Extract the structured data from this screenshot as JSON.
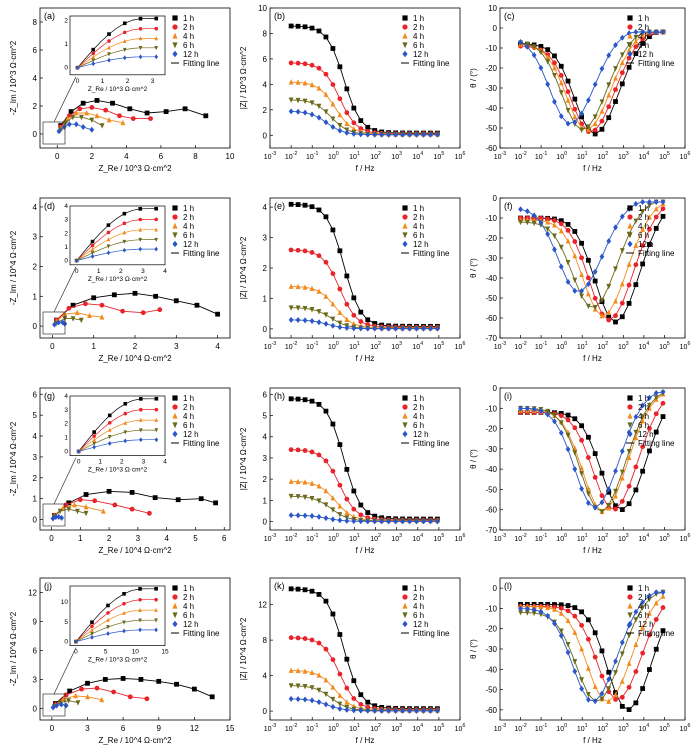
{
  "legend": {
    "times": [
      "1 h",
      "2 h",
      "4 h",
      "6 h",
      "12 h"
    ],
    "fit": "Fitting line"
  },
  "colors": {
    "1 h": "#000000",
    "2 h": "#e8232a",
    "4 h": "#f28a1c",
    "6 h": "#6b6a1a",
    "12 h": "#2a56c8"
  },
  "markers": {
    "1 h": "square",
    "2 h": "circle",
    "4 h": "triangle-up",
    "6 h": "triangle-down",
    "12 h": "diamond"
  },
  "chart_data": [
    {
      "id": "a",
      "letter": "(a)",
      "type": "scatter",
      "xlabel": "Z_Re / 10^3 Ω·cm^2",
      "ylabel": "-Z_Im / 10^3 Ω·cm^2",
      "xlim": [
        -1,
        10
      ],
      "ylim": [
        -1,
        9
      ],
      "xticks": [
        0,
        2,
        4,
        6,
        8,
        10
      ],
      "yticks": [
        0,
        2,
        4,
        6,
        8
      ],
      "series": [
        {
          "name": "1 h",
          "x": [
            0.2,
            0.8,
            1.5,
            2.3,
            3.2,
            4.2,
            5.2,
            6.3,
            7.4,
            8.6
          ],
          "y": [
            0.6,
            1.6,
            2.2,
            2.4,
            2.2,
            1.8,
            1.5,
            1.6,
            1.8,
            1.3
          ]
        },
        {
          "name": "2 h",
          "x": [
            0.2,
            0.7,
            1.3,
            2.0,
            2.8,
            3.6,
            4.4,
            5.4
          ],
          "y": [
            0.5,
            1.3,
            1.8,
            1.9,
            1.7,
            1.3,
            1.1,
            1.1
          ]
        },
        {
          "name": "4 h",
          "x": [
            0.2,
            0.6,
            1.1,
            1.7,
            2.3,
            3.0,
            3.8
          ],
          "y": [
            0.4,
            1.1,
            1.5,
            1.5,
            1.3,
            1.0,
            0.8
          ]
        },
        {
          "name": "6 h",
          "x": [
            0.2,
            0.5,
            0.9,
            1.4,
            2.0,
            2.6
          ],
          "y": [
            0.3,
            0.8,
            1.2,
            1.2,
            1.0,
            0.6
          ]
        },
        {
          "name": "12 h",
          "x": [
            0.1,
            0.4,
            0.7,
            1.1,
            1.5,
            2.0
          ],
          "y": [
            0.2,
            0.5,
            0.7,
            0.7,
            0.5,
            0.3
          ]
        }
      ],
      "inset": {
        "xlabel": "Z_Re / 10^3 Ω·cm^2",
        "ylabel": "-Z_Im / 10^3 Ω·cm^2",
        "xlim": [
          -0.3,
          3.5
        ],
        "ylim": [
          -0.3,
          2.2
        ],
        "xticks": [
          0,
          1,
          2,
          3
        ],
        "yticks": [
          0,
          1,
          2
        ]
      }
    },
    {
      "id": "b",
      "letter": "(b)",
      "type": "line",
      "xlabel": "f / Hz",
      "ylabel": "|Z| / 10^3 Ω·cm^2",
      "log_x": true,
      "xlim": [
        -3,
        6
      ],
      "ylim": [
        -1,
        10
      ],
      "yticks": [
        0,
        2,
        4,
        6,
        8,
        10
      ],
      "low": [
        8.6,
        5.7,
        4.2,
        2.8,
        1.9
      ]
    },
    {
      "id": "c",
      "letter": "(c)",
      "type": "line",
      "xlabel": "f / Hz",
      "ylabel": "θ / (°)",
      "log_x": true,
      "xlim": [
        -3,
        6
      ],
      "ylim": [
        -60,
        10
      ],
      "yticks": [
        -60,
        -50,
        -40,
        -30,
        -20,
        -10,
        0,
        10
      ],
      "peaks": [
        [
          1.6,
          -53
        ],
        [
          1.4,
          -52
        ],
        [
          1.2,
          -51
        ],
        [
          1.0,
          -51
        ],
        [
          0.4,
          -48
        ]
      ],
      "low": [
        -8,
        -9,
        -8,
        -7,
        -5
      ]
    },
    {
      "id": "d",
      "letter": "(d)",
      "type": "scatter",
      "xlabel": "Z_Re / 10^4 Ω·cm^2",
      "ylabel": "-Z_Im / 10^4 Ω·cm^2",
      "xlim": [
        -0.3,
        4.3
      ],
      "ylim": [
        -0.4,
        4.3
      ],
      "xticks": [
        0,
        1,
        2,
        3,
        4
      ],
      "yticks": [
        0,
        1,
        2,
        3,
        4
      ],
      "series": [
        {
          "name": "1 h",
          "x": [
            0.1,
            0.5,
            1.0,
            1.5,
            2.0,
            2.5,
            3.0,
            3.5,
            4.0
          ],
          "y": [
            0.2,
            0.7,
            0.95,
            1.05,
            1.1,
            1.0,
            0.85,
            0.7,
            0.4
          ]
        },
        {
          "name": "2 h",
          "x": [
            0.1,
            0.4,
            0.8,
            1.2,
            1.7,
            2.2,
            2.6
          ],
          "y": [
            0.2,
            0.6,
            0.75,
            0.7,
            0.5,
            0.45,
            0.55
          ]
        },
        {
          "name": "4 h",
          "x": [
            0.1,
            0.3,
            0.6,
            0.9,
            1.2
          ],
          "y": [
            0.15,
            0.4,
            0.45,
            0.35,
            0.3
          ]
        },
        {
          "name": "6 h",
          "x": [
            0.1,
            0.3,
            0.5,
            0.7
          ],
          "y": [
            0.1,
            0.25,
            0.25,
            0.2
          ]
        },
        {
          "name": "12 h",
          "x": [
            0.05,
            0.15,
            0.25,
            0.3
          ],
          "y": [
            0.05,
            0.12,
            0.12,
            0.08
          ]
        }
      ],
      "inset": {
        "xlabel": "Z_Re / 10^3 Ω·cm^2",
        "ylabel": "-Z_Im / 10^3 Ω·cm^2",
        "xlim": [
          -0.3,
          4
        ],
        "ylim": [
          -0.3,
          4
        ],
        "xticks": [
          0,
          1,
          2,
          3,
          4
        ],
        "yticks": [
          0,
          1,
          2,
          3,
          4
        ]
      }
    },
    {
      "id": "e",
      "letter": "(e)",
      "type": "line",
      "xlabel": "f / Hz",
      "ylabel": "|Z| / 10^4 Ω·cm^2",
      "log_x": true,
      "xlim": [
        -3,
        6
      ],
      "ylim": [
        -0.3,
        4.3
      ],
      "yticks": [
        0,
        1,
        2,
        3,
        4
      ],
      "low": [
        4.1,
        2.6,
        1.4,
        0.7,
        0.3
      ]
    },
    {
      "id": "f",
      "letter": "(f)",
      "type": "line",
      "xlabel": "f / Hz",
      "ylabel": "θ / (°)",
      "log_x": true,
      "xlim": [
        -3,
        6
      ],
      "ylim": [
        -70,
        0
      ],
      "yticks": [
        -70,
        -60,
        -50,
        -40,
        -30,
        -20,
        -10,
        0
      ],
      "peaks": [
        [
          2.6,
          -62
        ],
        [
          2.3,
          -61
        ],
        [
          2.0,
          -59
        ],
        [
          1.5,
          -55
        ],
        [
          0.8,
          -47
        ]
      ],
      "low": [
        -10,
        -10,
        -11,
        -12,
        -5
      ]
    },
    {
      "id": "g",
      "letter": "(g)",
      "type": "scatter",
      "xlabel": "Z_Re / 10^4 Ω·cm^2",
      "ylabel": "-Z_Im / 10^4 Ω·cm^2",
      "xlim": [
        -0.4,
        6.2
      ],
      "ylim": [
        -0.5,
        6.3
      ],
      "xticks": [
        0,
        1,
        2,
        3,
        4,
        5,
        6
      ],
      "yticks": [
        0,
        1,
        2,
        3,
        4,
        5,
        6
      ],
      "series": [
        {
          "name": "1 h",
          "x": [
            0.1,
            0.6,
            1.2,
            2.0,
            2.8,
            3.6,
            4.4,
            5.2,
            5.7
          ],
          "y": [
            0.2,
            0.8,
            1.2,
            1.35,
            1.3,
            1.05,
            0.95,
            1.0,
            0.8
          ]
        },
        {
          "name": "2 h",
          "x": [
            0.1,
            0.5,
            1.0,
            1.5,
            2.2,
            2.8,
            3.4
          ],
          "y": [
            0.2,
            0.7,
            0.95,
            0.9,
            0.7,
            0.5,
            0.3
          ]
        },
        {
          "name": "4 h",
          "x": [
            0.1,
            0.4,
            0.8,
            1.2,
            1.8
          ],
          "y": [
            0.2,
            0.55,
            0.7,
            0.6,
            0.4
          ]
        },
        {
          "name": "6 h",
          "x": [
            0.1,
            0.3,
            0.6,
            0.9,
            1.2
          ],
          "y": [
            0.15,
            0.4,
            0.5,
            0.4,
            0.3
          ]
        },
        {
          "name": "12 h",
          "x": [
            0.05,
            0.15,
            0.25,
            0.35
          ],
          "y": [
            0.05,
            0.12,
            0.13,
            0.08
          ]
        }
      ],
      "inset": {
        "xlabel": "Z_Re / 10^3 Ω·cm^2",
        "ylabel": "-Z_Im / 10^3 Ω·cm^2",
        "xlim": [
          -0.4,
          4
        ],
        "ylim": [
          -0.3,
          4
        ],
        "xticks": [
          0,
          1,
          2,
          3,
          4
        ],
        "yticks": [
          0,
          1,
          2,
          3,
          4
        ]
      }
    },
    {
      "id": "h",
      "letter": "(h)",
      "type": "line",
      "xlabel": "f / Hz",
      "ylabel": "|Z| / 10^4 Ω·cm^2",
      "log_x": true,
      "xlim": [
        -3,
        6
      ],
      "ylim": [
        -0.4,
        6.3
      ],
      "yticks": [
        0,
        1,
        2,
        3,
        4,
        5,
        6
      ],
      "low": [
        5.8,
        3.4,
        1.9,
        1.2,
        0.3
      ]
    },
    {
      "id": "i",
      "letter": "(i)",
      "type": "line",
      "xlabel": "f / Hz",
      "ylabel": "θ / (°)",
      "log_x": true,
      "xlim": [
        -3,
        6
      ],
      "ylim": [
        -70,
        0
      ],
      "yticks": [
        -70,
        -60,
        -50,
        -40,
        -30,
        -20,
        -10,
        0
      ],
      "peaks": [
        [
          2.9,
          -60
        ],
        [
          2.5,
          -60
        ],
        [
          2.0,
          -61
        ],
        [
          1.9,
          -61
        ],
        [
          1.6,
          -59
        ]
      ],
      "low": [
        -12,
        -12,
        -11,
        -10,
        -10
      ]
    },
    {
      "id": "j",
      "letter": "(j)",
      "type": "scatter",
      "xlabel": "Z_Re / 10^4 Ω·cm^2",
      "ylabel": "-Z_Im / 10^4 Ω·cm^2",
      "xlim": [
        -1,
        15
      ],
      "ylim": [
        -1.2,
        13.5
      ],
      "xticks": [
        0,
        3,
        6,
        9,
        12,
        15
      ],
      "yticks": [
        0,
        3,
        6,
        9,
        12
      ],
      "series": [
        {
          "name": "1 h",
          "x": [
            0.3,
            1.5,
            3.0,
            4.5,
            6.0,
            7.5,
            9.0,
            10.5,
            12.0,
            13.5
          ],
          "y": [
            0.5,
            1.8,
            2.6,
            3.0,
            3.1,
            3.0,
            2.8,
            2.5,
            2.0,
            1.2
          ]
        },
        {
          "name": "2 h",
          "x": [
            0.3,
            1.2,
            2.5,
            3.8,
            5.2,
            6.6,
            8.0
          ],
          "y": [
            0.4,
            1.4,
            2.0,
            2.1,
            1.7,
            1.2,
            1.0
          ]
        },
        {
          "name": "4 h",
          "x": [
            0.3,
            1.0,
            2.0,
            3.0,
            4.2
          ],
          "y": [
            0.3,
            1.0,
            1.3,
            1.2,
            0.9
          ]
        },
        {
          "name": "6 h",
          "x": [
            0.2,
            0.7,
            1.4,
            2.2
          ],
          "y": [
            0.2,
            0.6,
            0.8,
            0.6
          ]
        },
        {
          "name": "12 h",
          "x": [
            0.1,
            0.4,
            0.8,
            1.2
          ],
          "y": [
            0.1,
            0.3,
            0.4,
            0.3
          ]
        }
      ],
      "inset": {
        "xlabel": "Z_Re / 10^3 Ω·cm^2",
        "ylabel": "-Z_Im / 10^3 Ω·cm^2",
        "xlim": [
          -1,
          15
        ],
        "ylim": [
          -1,
          14
        ],
        "xticks": [
          0,
          5,
          10,
          15
        ],
        "yticks": [
          0,
          5,
          10
        ]
      }
    },
    {
      "id": "k",
      "letter": "(k)",
      "type": "line",
      "xlabel": "f / Hz",
      "ylabel": "|Z| / 10^4 Ω·cm^2",
      "log_x": true,
      "xlim": [
        -3,
        6
      ],
      "ylim": [
        -1,
        15
      ],
      "yticks": [
        0,
        4,
        8,
        12
      ],
      "low": [
        13.8,
        8.3,
        4.6,
        2.9,
        1.4
      ]
    },
    {
      "id": "l",
      "letter": "(l)",
      "type": "line",
      "xlabel": "f / Hz",
      "ylabel": "θ / (°)",
      "log_x": true,
      "xlim": [
        -3,
        6
      ],
      "ylim": [
        -65,
        5
      ],
      "yticks": [
        -60,
        -50,
        -40,
        -30,
        -20,
        -10,
        0
      ],
      "peaks": [
        [
          3.2,
          -60
        ],
        [
          2.7,
          -55
        ],
        [
          2.2,
          -56
        ],
        [
          1.7,
          -56
        ],
        [
          1.5,
          -56
        ]
      ],
      "low": [
        -8,
        -9,
        -9,
        -12,
        -10
      ]
    }
  ]
}
